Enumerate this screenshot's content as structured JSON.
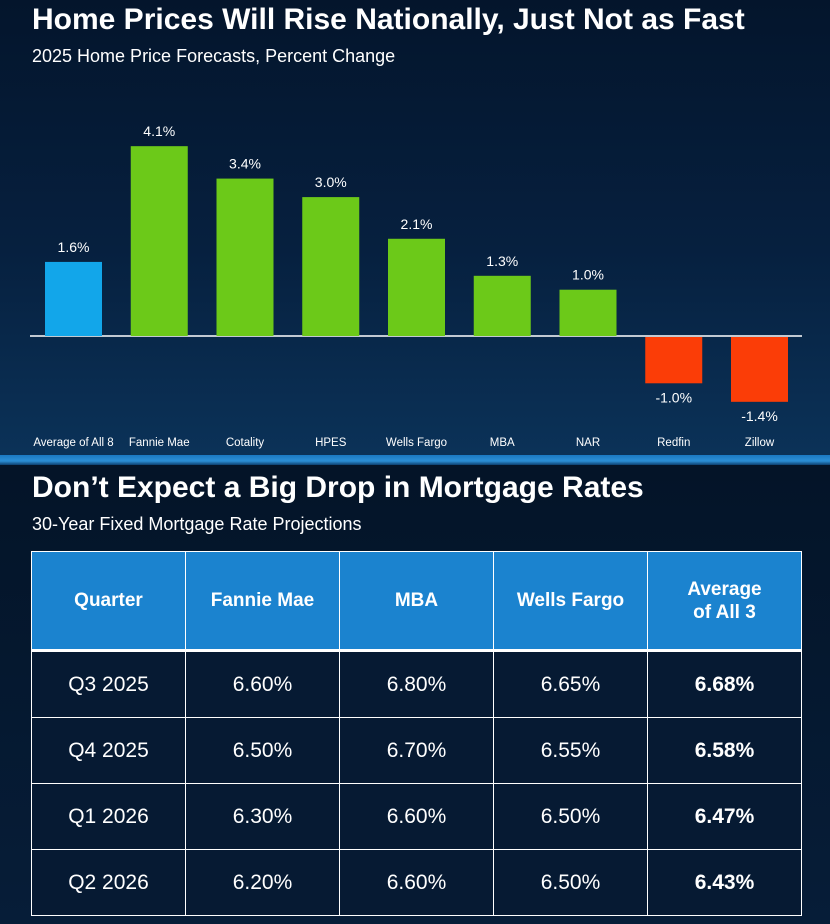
{
  "chart_data": {
    "type": "bar",
    "title": "Home Prices Will Rise Nationally, Just Not as Fast",
    "subtitle": "2025 Home Price Forecasts, Percent Change",
    "categories": [
      "Average of All 8",
      "Fannie Mae",
      "Cotality",
      "HPES",
      "Wells Fargo",
      "MBA",
      "NAR",
      "Redfin",
      "Zillow"
    ],
    "values": [
      1.6,
      4.1,
      3.4,
      3.0,
      2.1,
      1.3,
      1.0,
      -1.0,
      -1.4
    ],
    "labels": [
      "1.6%",
      "4.1%",
      "3.4%",
      "3.0%",
      "2.1%",
      "1.3%",
      "1.0%",
      "-1.0%",
      "-1.4%"
    ],
    "colors": [
      "#12a6ea",
      "#6cc919",
      "#6cc919",
      "#6cc919",
      "#6cc919",
      "#6cc919",
      "#6cc919",
      "#fb3d07",
      "#fb3d07"
    ],
    "ylim": [
      -1.4,
      4.1
    ],
    "grid": false,
    "xlabel": "",
    "ylabel": ""
  },
  "rates": {
    "title": "Don’t Expect a Big Drop in Mortgage Rates",
    "subtitle": "30-Year Fixed Mortgage Rate Projections",
    "headers": [
      "Quarter",
      "Fannie Mae",
      "MBA",
      "Wells Fargo",
      "Average\nof All 3"
    ],
    "rows": [
      [
        "Q3 2025",
        "6.60%",
        "6.80%",
        "6.65%",
        "6.68%"
      ],
      [
        "Q4 2025",
        "6.50%",
        "6.70%",
        "6.55%",
        "6.58%"
      ],
      [
        "Q1 2026",
        "6.30%",
        "6.60%",
        "6.50%",
        "6.47%"
      ],
      [
        "Q2 2026",
        "6.20%",
        "6.60%",
        "6.50%",
        "6.43%"
      ]
    ],
    "header_color": "#1b83cf"
  }
}
